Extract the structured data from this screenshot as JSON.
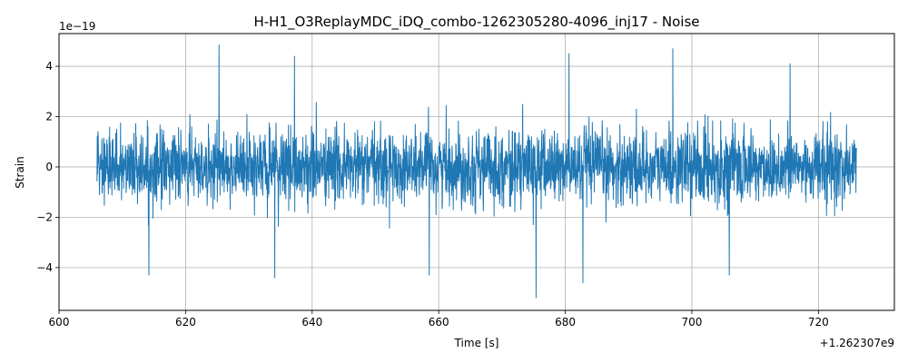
{
  "chart_data": {
    "type": "line",
    "title": "H-H1_O3ReplayMDC_iDQ_combo-1262305280-4096_inj17 - Noise",
    "xlabel": "Time [s]",
    "ylabel": "Strain",
    "x_offset_label": "+1.262307e9",
    "y_scale_label": "1e−19",
    "xlim": [
      600,
      732
    ],
    "ylim": [
      -5.7,
      5.3
    ],
    "x_ticks": [
      600,
      620,
      640,
      660,
      680,
      700,
      720
    ],
    "x_tick_labels": [
      "600",
      "620",
      "640",
      "660",
      "680",
      "700",
      "720"
    ],
    "y_ticks": [
      -4,
      -2,
      0,
      2,
      4
    ],
    "y_tick_labels": [
      "−4",
      "−2",
      "0",
      "2",
      "4"
    ],
    "grid": true,
    "series": [
      {
        "color": "#1f77b4",
        "x_range": [
          606,
          726
        ],
        "typical_amplitude": 1.9,
        "peak_max": 4.85,
        "peak_min": -5.2,
        "notable_peaks": [
          {
            "x": 625.3,
            "y": 4.85
          },
          {
            "x": 637.2,
            "y": 4.4
          },
          {
            "x": 697.0,
            "y": 4.7
          },
          {
            "x": 680.6,
            "y": 4.5
          },
          {
            "x": 715.5,
            "y": 4.1
          },
          {
            "x": 675.4,
            "y": -5.2
          },
          {
            "x": 682.8,
            "y": -4.6
          },
          {
            "x": 634.1,
            "y": -4.4
          },
          {
            "x": 614.2,
            "y": -4.3
          },
          {
            "x": 705.9,
            "y": -4.3
          },
          {
            "x": 658.5,
            "y": -4.3
          }
        ]
      }
    ]
  }
}
